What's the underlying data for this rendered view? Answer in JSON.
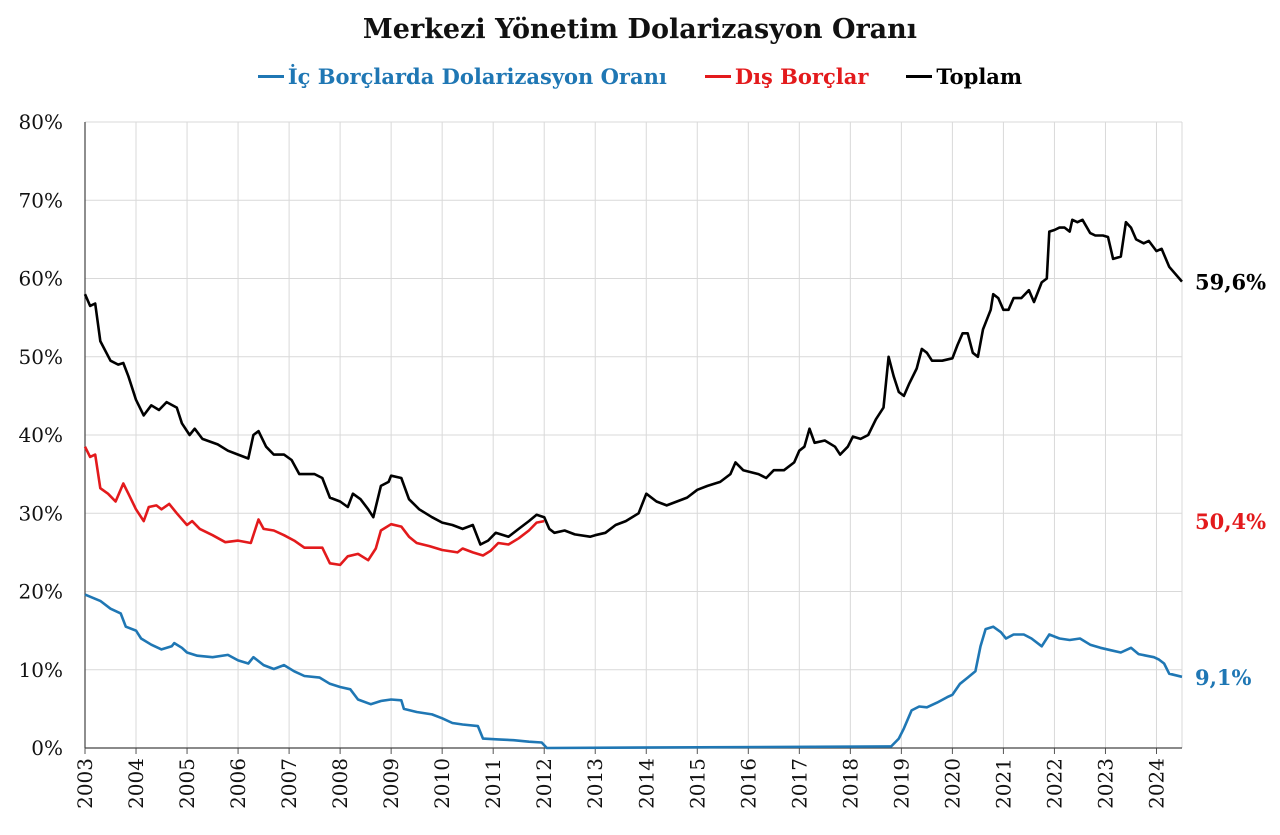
{
  "chart_data": {
    "type": "line",
    "title": "Merkezi Yönetim Dolarizasyon Oranı",
    "xlabel": "",
    "ylabel": "",
    "ylim": [
      0,
      80
    ],
    "xlim": [
      2003.0,
      2024.5
    ],
    "grid": true,
    "legend_position": "top",
    "y_ticks": [
      "0%",
      "10%",
      "20%",
      "30%",
      "40%",
      "50%",
      "60%",
      "70%",
      "80%"
    ],
    "x_ticks": [
      "2003",
      "2004",
      "2005",
      "2006",
      "2007",
      "2008",
      "2009",
      "2010",
      "2011",
      "2012",
      "2013",
      "2014",
      "2015",
      "2016",
      "2017",
      "2018",
      "2019",
      "2020",
      "2021",
      "2022",
      "2023",
      "2024"
    ],
    "series": [
      {
        "name": "İç Borçlarda Dolarizasyon Oranı",
        "color": "#1f77b4",
        "end_label": "9,1%",
        "points": [
          [
            2003.0,
            19.6
          ],
          [
            2003.3,
            18.8
          ],
          [
            2003.5,
            17.8
          ],
          [
            2003.7,
            17.2
          ],
          [
            2003.8,
            15.5
          ],
          [
            2004.0,
            15.0
          ],
          [
            2004.1,
            14.0
          ],
          [
            2004.3,
            13.2
          ],
          [
            2004.5,
            12.6
          ],
          [
            2004.7,
            13.0
          ],
          [
            2004.75,
            13.4
          ],
          [
            2004.9,
            12.8
          ],
          [
            2005.0,
            12.2
          ],
          [
            2005.2,
            11.8
          ],
          [
            2005.5,
            11.6
          ],
          [
            2005.8,
            11.9
          ],
          [
            2006.0,
            11.2
          ],
          [
            2006.2,
            10.8
          ],
          [
            2006.3,
            11.6
          ],
          [
            2006.5,
            10.6
          ],
          [
            2006.7,
            10.1
          ],
          [
            2006.9,
            10.6
          ],
          [
            2007.1,
            9.8
          ],
          [
            2007.3,
            9.2
          ],
          [
            2007.6,
            9.0
          ],
          [
            2007.8,
            8.2
          ],
          [
            2008.0,
            7.8
          ],
          [
            2008.2,
            7.5
          ],
          [
            2008.35,
            6.2
          ],
          [
            2008.6,
            5.6
          ],
          [
            2008.8,
            6.0
          ],
          [
            2009.0,
            6.2
          ],
          [
            2009.2,
            6.1
          ],
          [
            2009.25,
            5.0
          ],
          [
            2009.5,
            4.6
          ],
          [
            2009.8,
            4.3
          ],
          [
            2010.0,
            3.8
          ],
          [
            2010.2,
            3.2
          ],
          [
            2010.4,
            3.0
          ],
          [
            2010.7,
            2.8
          ],
          [
            2010.8,
            1.2
          ],
          [
            2011.1,
            1.1
          ],
          [
            2011.4,
            1.0
          ],
          [
            2011.7,
            0.8
          ],
          [
            2011.95,
            0.7
          ],
          [
            2012.05,
            0.0
          ],
          [
            2018.8,
            0.2
          ],
          [
            2018.95,
            1.2
          ],
          [
            2019.05,
            2.5
          ],
          [
            2019.2,
            4.8
          ],
          [
            2019.35,
            5.3
          ],
          [
            2019.5,
            5.2
          ],
          [
            2019.7,
            5.8
          ],
          [
            2019.9,
            6.5
          ],
          [
            2020.0,
            6.8
          ],
          [
            2020.15,
            8.2
          ],
          [
            2020.3,
            9.0
          ],
          [
            2020.45,
            9.8
          ],
          [
            2020.55,
            13.0
          ],
          [
            2020.65,
            15.2
          ],
          [
            2020.8,
            15.5
          ],
          [
            2020.95,
            14.8
          ],
          [
            2021.05,
            14.0
          ],
          [
            2021.2,
            14.5
          ],
          [
            2021.4,
            14.5
          ],
          [
            2021.55,
            14.0
          ],
          [
            2021.75,
            13.0
          ],
          [
            2021.9,
            14.5
          ],
          [
            2022.1,
            14.0
          ],
          [
            2022.3,
            13.8
          ],
          [
            2022.5,
            14.0
          ],
          [
            2022.7,
            13.2
          ],
          [
            2022.9,
            12.8
          ],
          [
            2023.1,
            12.5
          ],
          [
            2023.3,
            12.2
          ],
          [
            2023.5,
            12.8
          ],
          [
            2023.65,
            12.0
          ],
          [
            2023.8,
            11.8
          ],
          [
            2023.95,
            11.6
          ],
          [
            2024.05,
            11.3
          ],
          [
            2024.15,
            10.8
          ],
          [
            2024.25,
            9.5
          ],
          [
            2024.5,
            9.1
          ]
        ]
      },
      {
        "name": "Dış Borçlar",
        "color": "#e31a1c",
        "end_label": "50,4%",
        "points": [
          [
            2003.0,
            38.5
          ],
          [
            2003.1,
            37.2
          ],
          [
            2003.2,
            37.5
          ],
          [
            2003.3,
            33.2
          ],
          [
            2003.45,
            32.5
          ],
          [
            2003.6,
            31.5
          ],
          [
            2003.75,
            33.8
          ],
          [
            2003.85,
            32.5
          ],
          [
            2004.0,
            30.5
          ],
          [
            2004.15,
            29.0
          ],
          [
            2004.25,
            30.8
          ],
          [
            2004.4,
            31.0
          ],
          [
            2004.5,
            30.5
          ],
          [
            2004.65,
            31.2
          ],
          [
            2004.8,
            30.0
          ],
          [
            2005.0,
            28.5
          ],
          [
            2005.1,
            29.0
          ],
          [
            2005.25,
            28.0
          ],
          [
            2005.5,
            27.2
          ],
          [
            2005.75,
            26.3
          ],
          [
            2006.0,
            26.5
          ],
          [
            2006.25,
            26.2
          ],
          [
            2006.4,
            29.2
          ],
          [
            2006.5,
            28.0
          ],
          [
            2006.7,
            27.8
          ],
          [
            2006.9,
            27.2
          ],
          [
            2007.1,
            26.5
          ],
          [
            2007.3,
            25.6
          ],
          [
            2007.65,
            25.6
          ],
          [
            2007.8,
            23.6
          ],
          [
            2008.0,
            23.4
          ],
          [
            2008.15,
            24.5
          ],
          [
            2008.35,
            24.8
          ],
          [
            2008.55,
            24.0
          ],
          [
            2008.7,
            25.5
          ],
          [
            2008.8,
            27.8
          ],
          [
            2009.0,
            28.6
          ],
          [
            2009.2,
            28.3
          ],
          [
            2009.35,
            27.0
          ],
          [
            2009.5,
            26.2
          ],
          [
            2009.75,
            25.8
          ],
          [
            2010.0,
            25.3
          ],
          [
            2010.3,
            25.0
          ],
          [
            2010.4,
            25.5
          ],
          [
            2010.6,
            25.0
          ],
          [
            2010.8,
            24.6
          ],
          [
            2010.95,
            25.2
          ],
          [
            2011.1,
            26.2
          ],
          [
            2011.3,
            26.0
          ],
          [
            2011.5,
            26.8
          ],
          [
            2011.7,
            27.8
          ],
          [
            2011.85,
            28.8
          ],
          [
            2012.0,
            29.0
          ]
        ]
      },
      {
        "name": "Toplam",
        "color": "#000000",
        "end_label": "59,6%",
        "points": [
          [
            2003.0,
            58.0
          ],
          [
            2003.1,
            56.5
          ],
          [
            2003.2,
            56.8
          ],
          [
            2003.3,
            52.0
          ],
          [
            2003.5,
            49.5
          ],
          [
            2003.65,
            49.0
          ],
          [
            2003.75,
            49.2
          ],
          [
            2003.85,
            47.5
          ],
          [
            2004.0,
            44.5
          ],
          [
            2004.15,
            42.5
          ],
          [
            2004.3,
            43.8
          ],
          [
            2004.45,
            43.2
          ],
          [
            2004.6,
            44.2
          ],
          [
            2004.8,
            43.5
          ],
          [
            2004.9,
            41.5
          ],
          [
            2005.05,
            40.0
          ],
          [
            2005.15,
            40.8
          ],
          [
            2005.3,
            39.5
          ],
          [
            2005.6,
            38.8
          ],
          [
            2005.8,
            38.0
          ],
          [
            2006.0,
            37.5
          ],
          [
            2006.2,
            37.0
          ],
          [
            2006.3,
            40.0
          ],
          [
            2006.4,
            40.5
          ],
          [
            2006.55,
            38.5
          ],
          [
            2006.7,
            37.5
          ],
          [
            2006.9,
            37.5
          ],
          [
            2007.05,
            36.8
          ],
          [
            2007.2,
            35.0
          ],
          [
            2007.5,
            35.0
          ],
          [
            2007.65,
            34.5
          ],
          [
            2007.8,
            32.0
          ],
          [
            2008.0,
            31.5
          ],
          [
            2008.15,
            30.8
          ],
          [
            2008.25,
            32.5
          ],
          [
            2008.4,
            31.8
          ],
          [
            2008.55,
            30.5
          ],
          [
            2008.65,
            29.5
          ],
          [
            2008.8,
            33.5
          ],
          [
            2008.95,
            34.0
          ],
          [
            2009.0,
            34.8
          ],
          [
            2009.2,
            34.5
          ],
          [
            2009.35,
            31.8
          ],
          [
            2009.55,
            30.5
          ],
          [
            2009.8,
            29.5
          ],
          [
            2010.0,
            28.8
          ],
          [
            2010.2,
            28.5
          ],
          [
            2010.4,
            28.0
          ],
          [
            2010.6,
            28.5
          ],
          [
            2010.75,
            26.0
          ],
          [
            2010.9,
            26.5
          ],
          [
            2011.05,
            27.5
          ],
          [
            2011.3,
            27.0
          ],
          [
            2011.5,
            28.0
          ],
          [
            2011.7,
            29.0
          ],
          [
            2011.85,
            29.8
          ],
          [
            2012.0,
            29.5
          ],
          [
            2012.1,
            28.0
          ],
          [
            2012.2,
            27.5
          ],
          [
            2012.4,
            27.8
          ],
          [
            2012.6,
            27.3
          ],
          [
            2012.9,
            27.0
          ],
          [
            2013.0,
            27.2
          ],
          [
            2013.2,
            27.5
          ],
          [
            2013.4,
            28.5
          ],
          [
            2013.6,
            29.0
          ],
          [
            2013.85,
            30.0
          ],
          [
            2014.0,
            32.5
          ],
          [
            2014.2,
            31.5
          ],
          [
            2014.4,
            31.0
          ],
          [
            2014.6,
            31.5
          ],
          [
            2014.8,
            32.0
          ],
          [
            2015.0,
            33.0
          ],
          [
            2015.2,
            33.5
          ],
          [
            2015.45,
            34.0
          ],
          [
            2015.65,
            35.0
          ],
          [
            2015.75,
            36.5
          ],
          [
            2015.9,
            35.5
          ],
          [
            2016.2,
            35.0
          ],
          [
            2016.35,
            34.5
          ],
          [
            2016.5,
            35.5
          ],
          [
            2016.7,
            35.5
          ],
          [
            2016.9,
            36.5
          ],
          [
            2017.0,
            38.0
          ],
          [
            2017.1,
            38.5
          ],
          [
            2017.2,
            40.8
          ],
          [
            2017.3,
            39.0
          ],
          [
            2017.5,
            39.3
          ],
          [
            2017.7,
            38.5
          ],
          [
            2017.8,
            37.5
          ],
          [
            2017.95,
            38.5
          ],
          [
            2018.05,
            39.8
          ],
          [
            2018.2,
            39.5
          ],
          [
            2018.35,
            40.0
          ],
          [
            2018.5,
            42.0
          ],
          [
            2018.65,
            43.5
          ],
          [
            2018.75,
            50.0
          ],
          [
            2018.85,
            47.5
          ],
          [
            2018.95,
            45.5
          ],
          [
            2019.05,
            45.0
          ],
          [
            2019.15,
            46.5
          ],
          [
            2019.3,
            48.5
          ],
          [
            2019.4,
            51.0
          ],
          [
            2019.5,
            50.5
          ],
          [
            2019.6,
            49.5
          ],
          [
            2019.8,
            49.5
          ],
          [
            2020.0,
            49.8
          ],
          [
            2020.1,
            51.5
          ],
          [
            2020.2,
            53.0
          ],
          [
            2020.3,
            53.0
          ],
          [
            2020.4,
            50.5
          ],
          [
            2020.5,
            50.0
          ],
          [
            2020.6,
            53.5
          ],
          [
            2020.75,
            56.0
          ],
          [
            2020.8,
            58.0
          ],
          [
            2020.9,
            57.5
          ],
          [
            2021.0,
            56.0
          ],
          [
            2021.1,
            56.0
          ],
          [
            2021.2,
            57.5
          ],
          [
            2021.35,
            57.5
          ],
          [
            2021.5,
            58.5
          ],
          [
            2021.6,
            57.0
          ],
          [
            2021.75,
            59.5
          ],
          [
            2021.85,
            60.0
          ],
          [
            2021.9,
            66.0
          ],
          [
            2022.0,
            66.2
          ],
          [
            2022.1,
            66.5
          ],
          [
            2022.2,
            66.5
          ],
          [
            2022.3,
            66.0
          ],
          [
            2022.35,
            67.5
          ],
          [
            2022.45,
            67.2
          ],
          [
            2022.55,
            67.5
          ],
          [
            2022.7,
            65.8
          ],
          [
            2022.8,
            65.5
          ],
          [
            2022.95,
            65.5
          ],
          [
            2023.05,
            65.3
          ],
          [
            2023.15,
            62.5
          ],
          [
            2023.3,
            62.8
          ],
          [
            2023.4,
            67.2
          ],
          [
            2023.5,
            66.5
          ],
          [
            2023.6,
            65.0
          ],
          [
            2023.75,
            64.5
          ],
          [
            2023.85,
            64.8
          ],
          [
            2024.0,
            63.5
          ],
          [
            2024.1,
            63.8
          ],
          [
            2024.25,
            61.5
          ],
          [
            2024.5,
            59.6
          ]
        ]
      }
    ]
  }
}
